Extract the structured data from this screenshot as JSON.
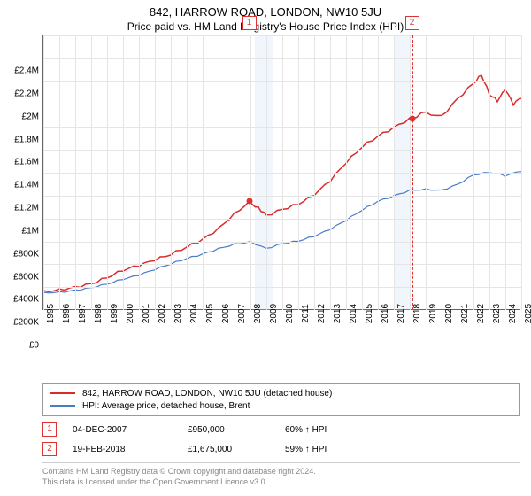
{
  "title_line1": "842, HARROW ROAD, LONDON, NW10 5JU",
  "title_line2": "Price paid vs. HM Land Registry's House Price Index (HPI)",
  "chart": {
    "type": "line",
    "background_color": "#ffffff",
    "grid_color": "#e5e5e5",
    "axis_color": "#666666",
    "xlim": [
      1995,
      2025
    ],
    "ylim": [
      0,
      2400000
    ],
    "ytick_step": 200000,
    "yticks": [
      "£0",
      "£200K",
      "£400K",
      "£600K",
      "£800K",
      "£1M",
      "£1.2M",
      "£1.4M",
      "£1.6M",
      "£1.8M",
      "£2M",
      "£2.2M",
      "£2.4M"
    ],
    "xticks": [
      1995,
      1996,
      1997,
      1998,
      1999,
      2000,
      2001,
      2002,
      2003,
      2004,
      2005,
      2006,
      2007,
      2008,
      2009,
      2010,
      2011,
      2012,
      2013,
      2014,
      2015,
      2016,
      2017,
      2018,
      2019,
      2020,
      2021,
      2022,
      2023,
      2024,
      2025
    ],
    "shaded_bands": [
      {
        "x_start": 2008.3,
        "x_end": 2009.4,
        "color": "rgba(200,215,245,0.25)"
      },
      {
        "x_start": 2017.0,
        "x_end": 2018.0,
        "color": "rgba(200,215,245,0.25)"
      }
    ],
    "vmarkers": [
      {
        "id": "1",
        "x": 2007.92
      },
      {
        "id": "2",
        "x": 2018.14
      }
    ],
    "marker_color": "#d33",
    "series": [
      {
        "name": "property",
        "color": "#d82c2c",
        "line_width": 1.5,
        "points": [
          [
            1995,
            170000
          ],
          [
            1996,
            185000
          ],
          [
            1997,
            205000
          ],
          [
            1998,
            230000
          ],
          [
            1999,
            280000
          ],
          [
            2000,
            340000
          ],
          [
            2001,
            380000
          ],
          [
            2002,
            430000
          ],
          [
            2003,
            480000
          ],
          [
            2004,
            550000
          ],
          [
            2005,
            620000
          ],
          [
            2006,
            720000
          ],
          [
            2007,
            850000
          ],
          [
            2007.92,
            950000
          ],
          [
            2008.5,
            900000
          ],
          [
            2009,
            830000
          ],
          [
            2010,
            880000
          ],
          [
            2011,
            920000
          ],
          [
            2012,
            1000000
          ],
          [
            2013,
            1120000
          ],
          [
            2014,
            1280000
          ],
          [
            2015,
            1420000
          ],
          [
            2016,
            1520000
          ],
          [
            2017,
            1600000
          ],
          [
            2018,
            1680000
          ],
          [
            2018.14,
            1675000
          ],
          [
            2019,
            1730000
          ],
          [
            2020,
            1700000
          ],
          [
            2021,
            1850000
          ],
          [
            2022,
            1980000
          ],
          [
            2022.5,
            2050000
          ],
          [
            2023,
            1880000
          ],
          [
            2023.5,
            1820000
          ],
          [
            2024,
            1920000
          ],
          [
            2024.5,
            1790000
          ],
          [
            2025,
            1850000
          ]
        ],
        "dots": [
          {
            "x": 2007.92,
            "y": 950000
          },
          {
            "x": 2018.14,
            "y": 1675000
          }
        ]
      },
      {
        "name": "hpi",
        "color": "#4a7bc8",
        "line_width": 1.2,
        "points": [
          [
            1995,
            155000
          ],
          [
            1996,
            160000
          ],
          [
            1997,
            175000
          ],
          [
            1998,
            195000
          ],
          [
            1999,
            225000
          ],
          [
            2000,
            265000
          ],
          [
            2001,
            300000
          ],
          [
            2002,
            350000
          ],
          [
            2003,
            400000
          ],
          [
            2004,
            450000
          ],
          [
            2005,
            490000
          ],
          [
            2006,
            540000
          ],
          [
            2007,
            580000
          ],
          [
            2008,
            600000
          ],
          [
            2009,
            540000
          ],
          [
            2010,
            580000
          ],
          [
            2011,
            600000
          ],
          [
            2012,
            640000
          ],
          [
            2013,
            700000
          ],
          [
            2014,
            780000
          ],
          [
            2015,
            870000
          ],
          [
            2016,
            950000
          ],
          [
            2017,
            1000000
          ],
          [
            2018,
            1050000
          ],
          [
            2019,
            1060000
          ],
          [
            2020,
            1050000
          ],
          [
            2021,
            1100000
          ],
          [
            2022,
            1180000
          ],
          [
            2023,
            1200000
          ],
          [
            2024,
            1170000
          ],
          [
            2025,
            1210000
          ]
        ]
      }
    ]
  },
  "legend": {
    "items": [
      {
        "color": "#d82c2c",
        "label": "842, HARROW ROAD, LONDON, NW10 5JU (detached house)"
      },
      {
        "color": "#4a7bc8",
        "label": "HPI: Average price, detached house, Brent"
      }
    ]
  },
  "transactions": [
    {
      "id": "1",
      "date": "04-DEC-2007",
      "price": "£950,000",
      "hpi_diff": "60% ↑ HPI"
    },
    {
      "id": "2",
      "date": "19-FEB-2018",
      "price": "£1,675,000",
      "hpi_diff": "59% ↑ HPI"
    }
  ],
  "footer": {
    "line1": "Contains HM Land Registry data © Crown copyright and database right 2024.",
    "line2": "This data is licensed under the Open Government Licence v3.0."
  }
}
